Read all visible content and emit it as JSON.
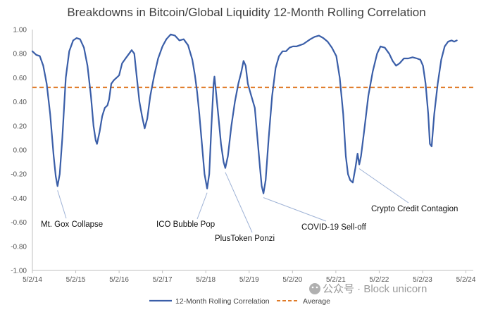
{
  "chart_data": {
    "type": "line",
    "title": "Breakdowns in Bitcoin/Global Liquidity 12-Month Rolling Correlation",
    "xlabel": "",
    "ylabel": "",
    "ylim": [
      -1.0,
      1.0
    ],
    "ytick_labels": [
      "1.00",
      "0.80",
      "0.60",
      "0.40",
      "0.20",
      "0.00",
      "-0.20",
      "-0.40",
      "-0.60",
      "-0.80",
      "-1.00"
    ],
    "ytick_values": [
      1.0,
      0.8,
      0.6,
      0.4,
      0.2,
      0.0,
      -0.2,
      -0.4,
      -0.6,
      -0.8,
      -1.0
    ],
    "xtick_labels": [
      "5/2/14",
      "5/2/15",
      "5/2/16",
      "5/2/17",
      "5/2/18",
      "5/2/19",
      "5/2/20",
      "5/2/21",
      "5/2/22",
      "5/2/23",
      "5/2/24"
    ],
    "x_start_year": 2014.33,
    "x_end_year": 2024.5,
    "grid": false,
    "legend": "bottom",
    "series": [
      {
        "name": "12-Month Rolling Correlation",
        "color": "#3a5ea8",
        "points": [
          [
            2014.33,
            0.82
          ],
          [
            2014.42,
            0.79
          ],
          [
            2014.5,
            0.78
          ],
          [
            2014.58,
            0.7
          ],
          [
            2014.66,
            0.55
          ],
          [
            2014.74,
            0.3
          ],
          [
            2014.82,
            -0.05
          ],
          [
            2014.87,
            -0.22
          ],
          [
            2014.91,
            -0.3
          ],
          [
            2014.96,
            -0.2
          ],
          [
            2015.02,
            0.1
          ],
          [
            2015.1,
            0.6
          ],
          [
            2015.18,
            0.82
          ],
          [
            2015.27,
            0.91
          ],
          [
            2015.35,
            0.93
          ],
          [
            2015.43,
            0.92
          ],
          [
            2015.52,
            0.85
          ],
          [
            2015.6,
            0.7
          ],
          [
            2015.68,
            0.45
          ],
          [
            2015.74,
            0.2
          ],
          [
            2015.79,
            0.08
          ],
          [
            2015.82,
            0.05
          ],
          [
            2015.88,
            0.15
          ],
          [
            2015.94,
            0.28
          ],
          [
            2016.0,
            0.35
          ],
          [
            2016.06,
            0.37
          ],
          [
            2016.1,
            0.42
          ],
          [
            2016.15,
            0.55
          ],
          [
            2016.21,
            0.58
          ],
          [
            2016.27,
            0.6
          ],
          [
            2016.33,
            0.62
          ],
          [
            2016.4,
            0.72
          ],
          [
            2016.48,
            0.76
          ],
          [
            2016.56,
            0.8
          ],
          [
            2016.62,
            0.83
          ],
          [
            2016.68,
            0.8
          ],
          [
            2016.74,
            0.6
          ],
          [
            2016.8,
            0.4
          ],
          [
            2016.86,
            0.28
          ],
          [
            2016.92,
            0.18
          ],
          [
            2016.98,
            0.26
          ],
          [
            2017.05,
            0.45
          ],
          [
            2017.14,
            0.62
          ],
          [
            2017.23,
            0.76
          ],
          [
            2017.33,
            0.86
          ],
          [
            2017.42,
            0.92
          ],
          [
            2017.52,
            0.96
          ],
          [
            2017.62,
            0.95
          ],
          [
            2017.72,
            0.91
          ],
          [
            2017.82,
            0.92
          ],
          [
            2017.92,
            0.87
          ],
          [
            2018.02,
            0.75
          ],
          [
            2018.08,
            0.62
          ],
          [
            2018.13,
            0.48
          ],
          [
            2018.18,
            0.3
          ],
          [
            2018.24,
            0.05
          ],
          [
            2018.3,
            -0.2
          ],
          [
            2018.36,
            -0.32
          ],
          [
            2018.41,
            -0.2
          ],
          [
            2018.46,
            0.2
          ],
          [
            2018.51,
            0.55
          ],
          [
            2018.53,
            0.61
          ],
          [
            2018.56,
            0.5
          ],
          [
            2018.62,
            0.28
          ],
          [
            2018.68,
            0.05
          ],
          [
            2018.74,
            -0.1
          ],
          [
            2018.78,
            -0.15
          ],
          [
            2018.84,
            -0.05
          ],
          [
            2018.92,
            0.2
          ],
          [
            2019.0,
            0.4
          ],
          [
            2019.08,
            0.55
          ],
          [
            2019.15,
            0.65
          ],
          [
            2019.2,
            0.74
          ],
          [
            2019.25,
            0.7
          ],
          [
            2019.3,
            0.55
          ],
          [
            2019.38,
            0.45
          ],
          [
            2019.46,
            0.35
          ],
          [
            2019.52,
            0.1
          ],
          [
            2019.58,
            -0.15
          ],
          [
            2019.62,
            -0.3
          ],
          [
            2019.66,
            -0.36
          ],
          [
            2019.71,
            -0.25
          ],
          [
            2019.78,
            0.1
          ],
          [
            2019.86,
            0.45
          ],
          [
            2019.94,
            0.68
          ],
          [
            2020.02,
            0.78
          ],
          [
            2020.1,
            0.82
          ],
          [
            2020.18,
            0.82
          ],
          [
            2020.26,
            0.85
          ],
          [
            2020.34,
            0.86
          ],
          [
            2020.42,
            0.86
          ],
          [
            2020.5,
            0.87
          ],
          [
            2020.58,
            0.88
          ],
          [
            2020.66,
            0.9
          ],
          [
            2020.74,
            0.92
          ],
          [
            2020.84,
            0.94
          ],
          [
            2020.94,
            0.95
          ],
          [
            2021.04,
            0.93
          ],
          [
            2021.14,
            0.9
          ],
          [
            2021.24,
            0.85
          ],
          [
            2021.34,
            0.78
          ],
          [
            2021.42,
            0.6
          ],
          [
            2021.5,
            0.3
          ],
          [
            2021.56,
            -0.05
          ],
          [
            2021.61,
            -0.2
          ],
          [
            2021.66,
            -0.25
          ],
          [
            2021.72,
            -0.27
          ],
          [
            2021.78,
            -0.15
          ],
          [
            2021.83,
            -0.03
          ],
          [
            2021.87,
            -0.12
          ],
          [
            2021.91,
            -0.05
          ],
          [
            2021.98,
            0.15
          ],
          [
            2022.08,
            0.45
          ],
          [
            2022.18,
            0.65
          ],
          [
            2022.28,
            0.8
          ],
          [
            2022.36,
            0.86
          ],
          [
            2022.46,
            0.85
          ],
          [
            2022.56,
            0.8
          ],
          [
            2022.64,
            0.74
          ],
          [
            2022.72,
            0.7
          ],
          [
            2022.8,
            0.72
          ],
          [
            2022.9,
            0.76
          ],
          [
            2023.0,
            0.76
          ],
          [
            2023.1,
            0.77
          ],
          [
            2023.2,
            0.76
          ],
          [
            2023.28,
            0.75
          ],
          [
            2023.34,
            0.7
          ],
          [
            2023.4,
            0.55
          ],
          [
            2023.46,
            0.3
          ],
          [
            2023.5,
            0.05
          ],
          [
            2023.54,
            0.03
          ],
          [
            2023.6,
            0.3
          ],
          [
            2023.68,
            0.55
          ],
          [
            2023.76,
            0.75
          ],
          [
            2023.84,
            0.86
          ],
          [
            2023.92,
            0.9
          ],
          [
            2024.0,
            0.91
          ],
          [
            2024.06,
            0.9
          ],
          [
            2024.12,
            0.91
          ]
        ]
      },
      {
        "name": "Average",
        "color": "#e07b28",
        "style": "dashed",
        "value": 0.52
      }
    ],
    "annotations": [
      {
        "text": "Mt. Gox Collapse",
        "point_year": 2014.91,
        "point_value": -0.3
      },
      {
        "text": "ICO Bubble Pop",
        "point_year": 2018.36,
        "point_value": -0.32
      },
      {
        "text": "PlusToken Ponzi",
        "point_year": 2018.78,
        "point_value": -0.15
      },
      {
        "text": "COVID-19 Sell-off",
        "point_year": 2019.66,
        "point_value": -0.36
      },
      {
        "text": "Crypto Credit Contagion",
        "point_year": 2021.87,
        "point_value": -0.12
      }
    ]
  },
  "watermark": "公众号 · Block unicorn"
}
